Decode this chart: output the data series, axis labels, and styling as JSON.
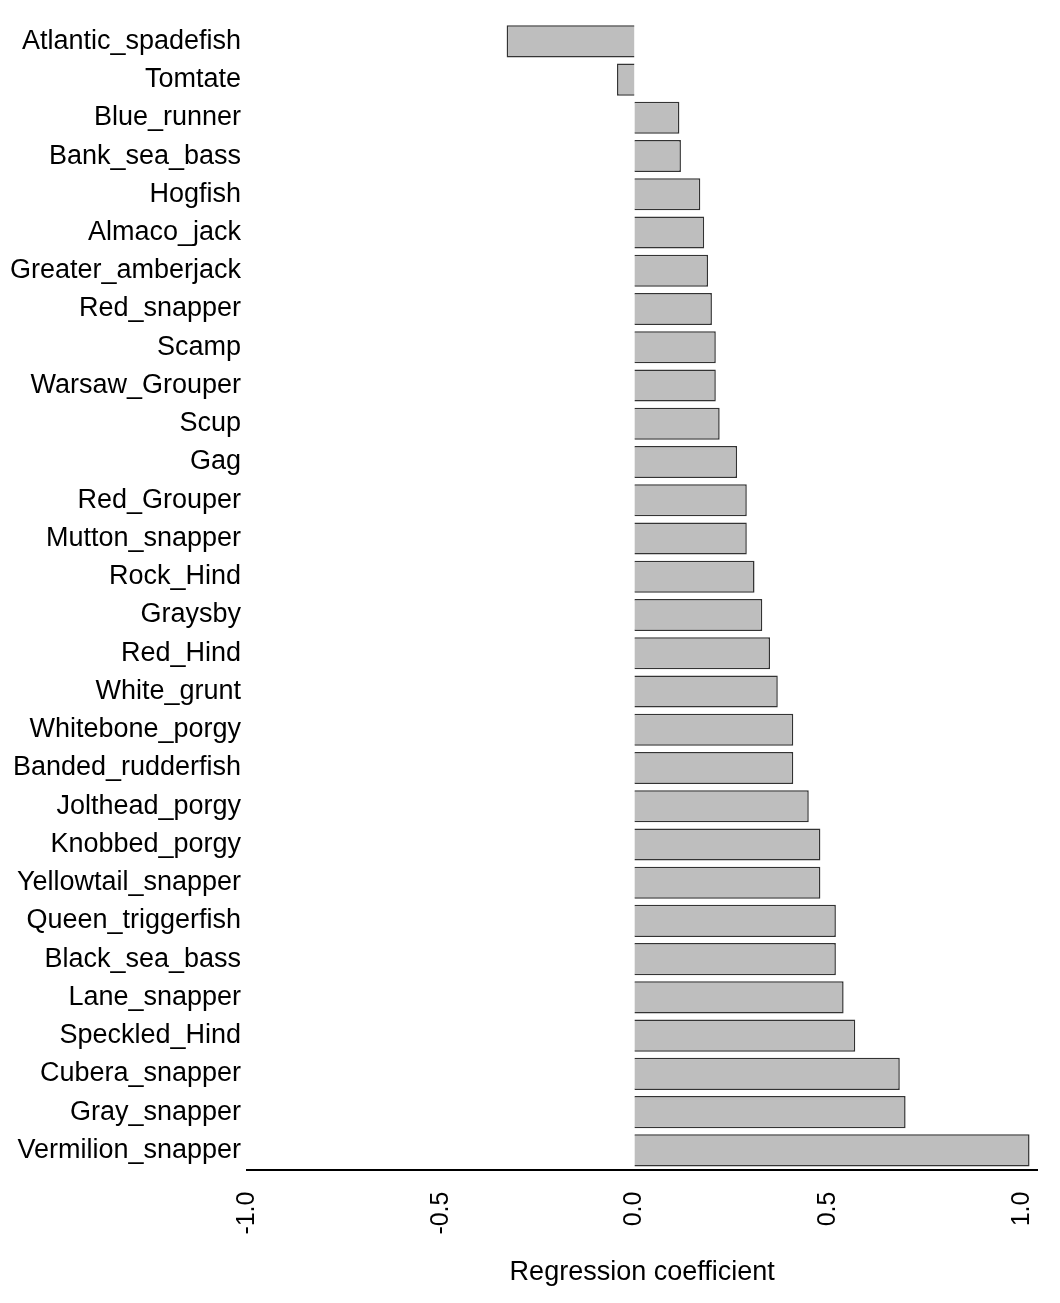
{
  "chart_data": {
    "type": "bar",
    "orientation": "horizontal",
    "xlabel": "Regression coefficient",
    "categories": [
      "Atlantic_spadefish",
      "Tomtate",
      "Blue_runner",
      "Bank_sea_bass",
      "Hogfish",
      "Almaco_jack",
      "Greater_amberjack",
      "Red_snapper",
      "Scamp",
      "Warsaw_Grouper",
      "Scup",
      "Gag",
      "Red_Grouper",
      "Mutton_snapper",
      "Rock_Hind",
      "Graysby",
      "Red_Hind",
      "White_grunt",
      "Whitebone_porgy",
      "Banded_rudderfish",
      "Jolthead_porgy",
      "Knobbed_porgy",
      "Yellowtail_snapper",
      "Queen_triggerfish",
      "Black_sea_bass",
      "Lane_snapper",
      "Speckled_Hind",
      "Cubera_snapper",
      "Gray_snapper",
      "Vermilion_snapper"
    ],
    "values": [
      -0.33,
      -0.045,
      0.116,
      0.12,
      0.17,
      0.18,
      0.19,
      0.2,
      0.21,
      0.21,
      0.22,
      0.265,
      0.29,
      0.29,
      0.31,
      0.33,
      0.35,
      0.37,
      0.41,
      0.41,
      0.45,
      0.48,
      0.48,
      0.52,
      0.52,
      0.54,
      0.57,
      0.685,
      0.7,
      1.02
    ],
    "color": "#bebebe",
    "xlim": [
      -1.0,
      1.04
    ],
    "xticks": [
      {
        "value": -1,
        "label": "-1.0"
      },
      {
        "value": -0.5,
        "label": "-0.5"
      },
      {
        "value": 0,
        "label": "0.0"
      },
      {
        "value": 0.5,
        "label": "0.5"
      },
      {
        "value": 1,
        "label": "1.0"
      }
    ],
    "grid": false,
    "legend": false
  }
}
